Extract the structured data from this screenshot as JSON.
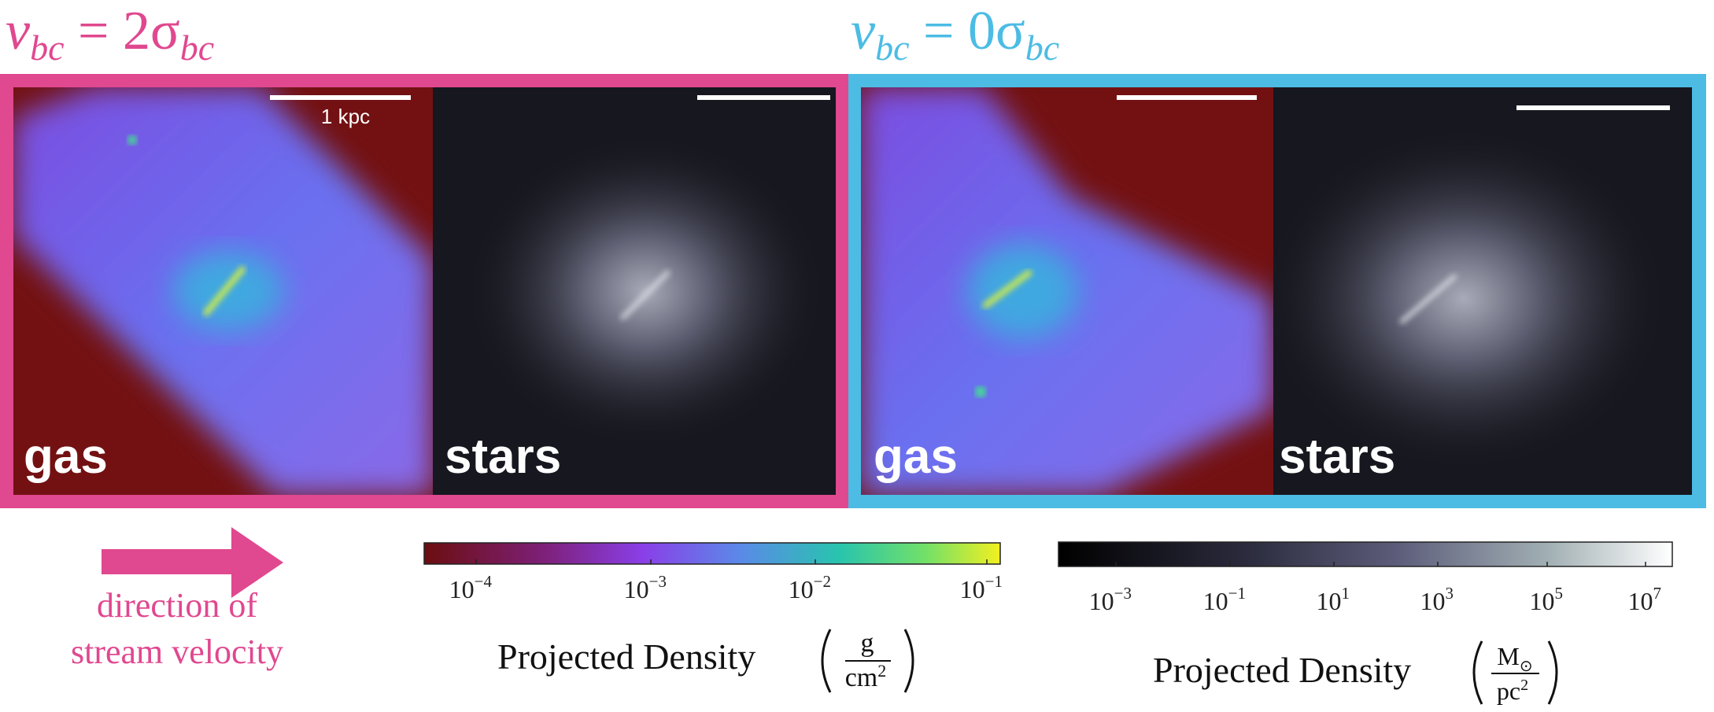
{
  "titles": {
    "left": {
      "v": "v",
      "sub1": "bc",
      "middle": " = 2σ",
      "sub2": "bc"
    },
    "right": {
      "v": "v",
      "sub1": "bc",
      "middle": " = 0σ",
      "sub2": "bc"
    }
  },
  "panels": {
    "left": {
      "gas": "gas",
      "stars": "stars",
      "scale": "1 kpc"
    },
    "right": {
      "gas": "gas",
      "stars": "stars"
    }
  },
  "arrow_caption": [
    "direction of",
    "stream velocity"
  ],
  "colorbars": {
    "gas": {
      "ticks": [
        {
          "base": "10",
          "exp": "−4"
        },
        {
          "base": "10",
          "exp": "−3"
        },
        {
          "base": "10",
          "exp": "−2"
        },
        {
          "base": "10",
          "exp": "−1"
        }
      ],
      "label": "Projected Density",
      "unit_num": "g",
      "unit_den": "cm",
      "unit_den_exp": "2"
    },
    "stars": {
      "ticks": [
        {
          "base": "10",
          "exp": "−3"
        },
        {
          "base": "10",
          "exp": "−1"
        },
        {
          "base": "10",
          "exp": "1"
        },
        {
          "base": "10",
          "exp": "3"
        },
        {
          "base": "10",
          "exp": "5"
        },
        {
          "base": "10",
          "exp": "7"
        }
      ],
      "label": "Projected Density",
      "unit_num": "M",
      "unit_num_sub": "⊙",
      "unit_den": "pc",
      "unit_den_exp": "2"
    }
  }
}
